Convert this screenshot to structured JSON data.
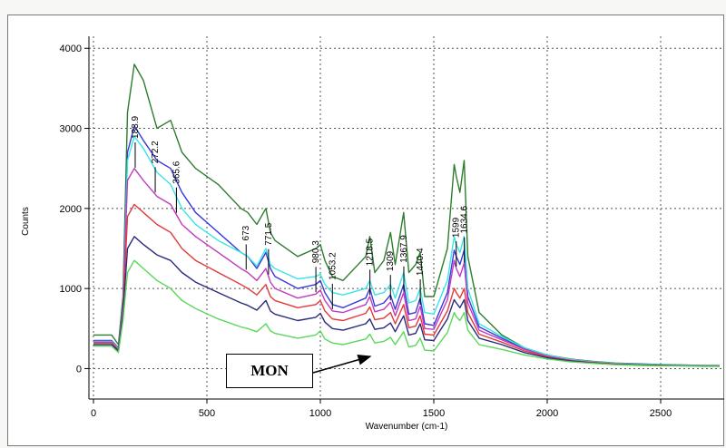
{
  "chart_data": {
    "type": "line",
    "xlabel": "Wavenumber (cm-1)",
    "ylabel": "Counts",
    "xlim": [
      -20,
      2780
    ],
    "ylim": [
      -380,
      4150
    ],
    "xticks": [
      0,
      500,
      1000,
      1500,
      2000,
      2500
    ],
    "yticks": [
      0,
      1000,
      2000,
      3000,
      4000
    ],
    "grid": true,
    "legend": "none",
    "x": [
      0,
      80,
      110,
      130,
      150,
      180,
      220,
      280,
      340,
      390,
      450,
      550,
      650,
      680,
      720,
      760,
      780,
      800,
      900,
      980,
      1000,
      1020,
      1053,
      1100,
      1200,
      1218,
      1240,
      1280,
      1309,
      1330,
      1367,
      1390,
      1420,
      1440,
      1460,
      1500,
      1560,
      1590,
      1599,
      1615,
      1634,
      1650,
      1700,
      1800,
      1900,
      2000,
      2100,
      2200,
      2300,
      2400,
      2500,
      2600,
      2700,
      2760
    ],
    "series": [
      {
        "color": "#2e7d2e",
        "values": [
          420,
          420,
          300,
          900,
          3200,
          3800,
          3600,
          3000,
          3100,
          2700,
          2500,
          2300,
          2000,
          1950,
          1800,
          2000,
          1700,
          1600,
          1400,
          1500,
          1550,
          1350,
          1150,
          1100,
          1400,
          1650,
          1200,
          1350,
          1700,
          1300,
          1950,
          1200,
          1300,
          1450,
          900,
          900,
          1500,
          2550,
          2400,
          2200,
          2600,
          1400,
          700,
          420,
          260,
          170,
          120,
          90,
          70,
          60,
          50,
          45,
          40,
          40
        ]
      },
      {
        "color": "#3a3ad8",
        "values": [
          350,
          350,
          260,
          800,
          2700,
          3030,
          2850,
          2600,
          2500,
          2200,
          1950,
          1700,
          1450,
          1400,
          1250,
          1450,
          1250,
          1150,
          1000,
          1050,
          1100,
          950,
          800,
          760,
          880,
          1000,
          780,
          820,
          920,
          740,
          1050,
          680,
          700,
          880,
          560,
          540,
          950,
          1480,
          1400,
          1300,
          1480,
          900,
          520,
          380,
          250,
          160,
          110,
          80,
          60,
          50,
          45,
          40,
          35,
          35
        ]
      },
      {
        "color": "#39e5e5",
        "values": [
          340,
          340,
          250,
          780,
          2600,
          2900,
          2750,
          2450,
          2300,
          2000,
          1800,
          1600,
          1450,
          1400,
          1280,
          1500,
          1300,
          1250,
          1120,
          1150,
          1180,
          1050,
          950,
          920,
          1000,
          1100,
          920,
          950,
          1050,
          880,
          1200,
          820,
          850,
          1000,
          700,
          680,
          1100,
          1650,
          1550,
          1450,
          1650,
          1000,
          560,
          400,
          260,
          170,
          115,
          85,
          65,
          55,
          48,
          42,
          38,
          38
        ]
      },
      {
        "color": "#c03ac0",
        "values": [
          330,
          330,
          240,
          760,
          2350,
          2500,
          2350,
          2150,
          2050,
          1800,
          1650,
          1450,
          1250,
          1200,
          1100,
          1250,
          1080,
          1000,
          880,
          930,
          980,
          850,
          720,
          700,
          800,
          900,
          710,
          740,
          830,
          660,
          950,
          600,
          620,
          780,
          500,
          490,
          860,
          1350,
          1250,
          1150,
          1320,
          820,
          480,
          360,
          240,
          155,
          105,
          78,
          58,
          48,
          42,
          38,
          34,
          34
        ]
      },
      {
        "color": "#e23a3a",
        "values": [
          320,
          320,
          230,
          720,
          1900,
          2050,
          1950,
          1800,
          1700,
          1500,
          1350,
          1200,
          1050,
          1000,
          920,
          1050,
          900,
          850,
          760,
          800,
          850,
          720,
          620,
          600,
          690,
          770,
          610,
          630,
          700,
          560,
          800,
          510,
          530,
          660,
          430,
          420,
          720,
          1000,
          950,
          880,
          1000,
          700,
          430,
          330,
          220,
          145,
          100,
          75,
          56,
          46,
          40,
          36,
          32,
          32
        ]
      },
      {
        "color": "#2a2a7a",
        "values": [
          300,
          300,
          220,
          680,
          1500,
          1650,
          1550,
          1420,
          1350,
          1200,
          1080,
          950,
          820,
          790,
          730,
          850,
          720,
          680,
          600,
          640,
          690,
          580,
          500,
          480,
          560,
          620,
          490,
          510,
          570,
          460,
          660,
          420,
          440,
          560,
          360,
          350,
          620,
          860,
          820,
          760,
          860,
          600,
          380,
          300,
          200,
          135,
          95,
          70,
          52,
          43,
          38,
          34,
          30,
          30
        ]
      },
      {
        "color": "#5ad85a",
        "values": [
          280,
          280,
          200,
          600,
          1200,
          1350,
          1250,
          1100,
          1000,
          850,
          750,
          620,
          520,
          500,
          460,
          560,
          470,
          440,
          380,
          420,
          470,
          370,
          320,
          300,
          370,
          430,
          320,
          340,
          390,
          300,
          460,
          270,
          290,
          380,
          230,
          220,
          450,
          700,
          650,
          600,
          700,
          480,
          300,
          240,
          170,
          120,
          85,
          65,
          48,
          40,
          35,
          32,
          28,
          28
        ]
      }
    ],
    "peak_labels": [
      {
        "text": "183.9",
        "x": 183.9
      },
      {
        "text": "272.2",
        "x": 272.2
      },
      {
        "text": "365.6",
        "x": 365.6
      },
      {
        "text": "673",
        "x": 673
      },
      {
        "text": "771.5",
        "x": 771.5
      },
      {
        "text": "980.3",
        "x": 980.3
      },
      {
        "text": "1053.2",
        "x": 1053.2
      },
      {
        "text": "1218.5",
        "x": 1218.5
      },
      {
        "text": "1309",
        "x": 1309
      },
      {
        "text": "1367.9",
        "x": 1367.9
      },
      {
        "text": "1440.4",
        "x": 1440.4
      },
      {
        "text": "1599",
        "x": 1599
      },
      {
        "text": "1634.6",
        "x": 1634.6
      }
    ]
  },
  "annotation": {
    "text": "MON"
  }
}
